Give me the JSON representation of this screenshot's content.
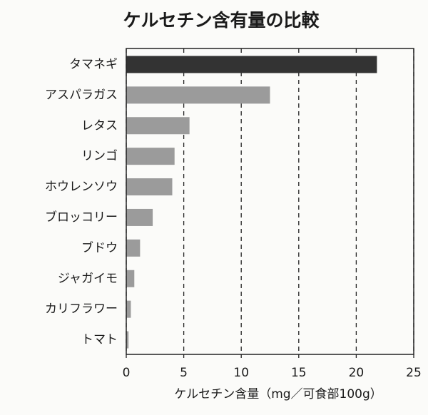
{
  "chart_data": {
    "type": "hbar",
    "title": "ケルセチン含有量の比較",
    "categories": [
      "タマネギ",
      "アスパラガス",
      "レタス",
      "リンゴ",
      "ホウレンソウ",
      "ブロッコリー",
      "ブドウ",
      "ジャガイモ",
      "カリフラワー",
      "トマト"
    ],
    "values": [
      21.8,
      12.5,
      5.5,
      4.2,
      4.0,
      2.3,
      1.2,
      0.7,
      0.4,
      0.2
    ],
    "colors": [
      "#333333",
      "#9b9b9b",
      "#9b9b9b",
      "#9b9b9b",
      "#9b9b9b",
      "#9b9b9b",
      "#9b9b9b",
      "#9b9b9b",
      "#9b9b9b",
      "#9b9b9b"
    ],
    "x_label": "ケルセチン含量（mg／可食部100g）",
    "xlim": [
      0,
      25
    ],
    "xticks": [
      0,
      5,
      10,
      15,
      20,
      25
    ],
    "grid": true
  }
}
